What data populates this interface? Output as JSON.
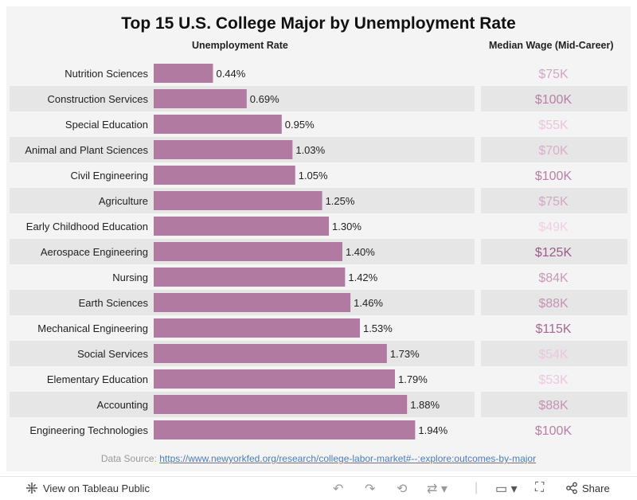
{
  "chart_data": {
    "type": "bar",
    "title": "Top 15 U.S. College Major by Unemployment Rate",
    "bar_header": "Unemployment Rate",
    "wage_header": "Median Wage (Mid-Career)",
    "categories": [
      "Nutrition Sciences",
      "Construction Services",
      "Special Education",
      "Animal and Plant Sciences",
      "Civil Engineering",
      "Agriculture",
      "Early Childhood Education",
      "Aerospace Engineering",
      "Nursing",
      "Earth Sciences",
      "Mechanical Engineering",
      "Social Services",
      "Elementary Education",
      "Accounting",
      "Engineering Technologies"
    ],
    "values": [
      0.44,
      0.69,
      0.95,
      1.03,
      1.05,
      1.25,
      1.3,
      1.4,
      1.42,
      1.46,
      1.53,
      1.73,
      1.79,
      1.88,
      1.94
    ],
    "value_labels": [
      "0.44%",
      "0.69%",
      "0.95%",
      "1.03%",
      "1.05%",
      "1.25%",
      "1.30%",
      "1.40%",
      "1.42%",
      "1.46%",
      "1.53%",
      "1.73%",
      "1.79%",
      "1.88%",
      "1.94%"
    ],
    "wages": [
      75,
      100,
      55,
      70,
      100,
      75,
      49,
      125,
      84,
      88,
      115,
      54,
      53,
      88,
      100
    ],
    "wage_labels": [
      "$75K",
      "$100K",
      "$55K",
      "$70K",
      "$100K",
      "$75K",
      "$49K",
      "$125K",
      "$84K",
      "$88K",
      "$115K",
      "$54K",
      "$53K",
      "$88K",
      "$100K"
    ],
    "xlim": [
      0,
      2.05
    ],
    "bar_color": "#b07aa1",
    "wage_color_range": [
      "#f0cfe3",
      "#9a5b86"
    ]
  },
  "source": {
    "prefix": "Data Source: ",
    "link": "https://www.newyorkfed.org/research/college-labor-market#--:explore:outcomes-by-major"
  },
  "footer": {
    "view_label": "View on Tableau Public",
    "share_label": "Share",
    "icons": [
      "tableau-icon",
      "undo-icon",
      "redo-icon",
      "revert-icon",
      "refresh-icon",
      "download-icon",
      "fullscreen-icon",
      "share-icon"
    ]
  }
}
